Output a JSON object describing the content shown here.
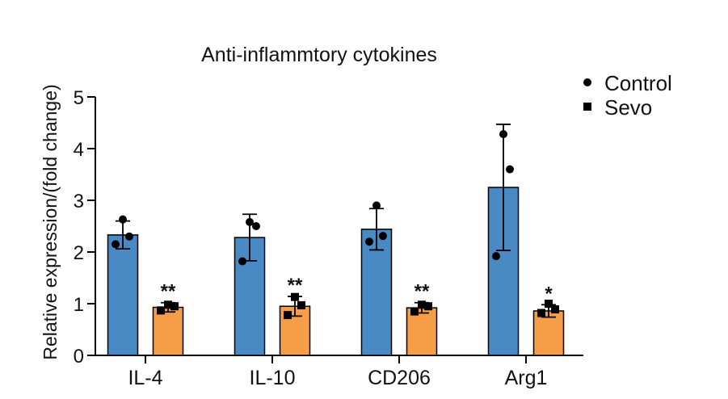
{
  "chart_data": {
    "type": "bar",
    "title": "Anti-inflammtory cytokines",
    "xlabel": "",
    "ylabel": "Relative expression/(fold change)",
    "ylim": [
      0,
      5
    ],
    "yticks": [
      "0",
      "1",
      "2",
      "3",
      "4",
      "5"
    ],
    "categories": [
      "IL-4",
      "IL-10",
      "CD206",
      "Arg1"
    ],
    "series": [
      {
        "name": "Control",
        "color": "#4a8ac4",
        "marker": "circle",
        "values": [
          2.33,
          2.28,
          2.44,
          3.25
        ],
        "errors": [
          0.27,
          0.45,
          0.4,
          1.22
        ],
        "points": [
          [
            2.63,
            2.3,
            2.15
          ],
          [
            2.58,
            2.5,
            1.82
          ],
          [
            2.9,
            2.31,
            2.2
          ],
          [
            4.28,
            3.6,
            1.92
          ]
        ]
      },
      {
        "name": "Sevo",
        "color": "#f59d47",
        "marker": "square",
        "values": [
          0.93,
          0.95,
          0.92,
          0.86
        ],
        "errors": [
          0.09,
          0.19,
          0.1,
          0.12
        ],
        "points": [
          [
            0.98,
            0.95,
            0.87
          ],
          [
            1.13,
            0.97,
            0.78
          ],
          [
            0.98,
            0.95,
            0.85
          ],
          [
            1.0,
            0.89,
            0.82
          ]
        ]
      }
    ],
    "significance": [
      "**",
      "**",
      "**",
      "*"
    ],
    "legend": [
      "Control",
      "Sevo"
    ]
  }
}
